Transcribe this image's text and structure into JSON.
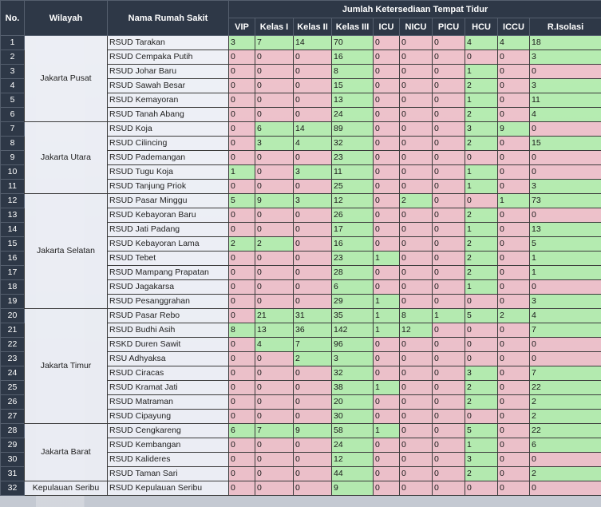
{
  "headers": {
    "no": "No.",
    "wilayah": "Wilayah",
    "rumah_sakit": "Nama Rumah Sakit",
    "group": "Jumlah Ketersediaan Tempat Tidur",
    "columns": [
      "VIP",
      "Kelas I",
      "Kelas II",
      "Kelas III",
      "ICU",
      "NICU",
      "PICU",
      "HCU",
      "ICCU",
      "R.Isolasi"
    ]
  },
  "regions": [
    {
      "name": "Jakarta Pusat",
      "rows": 6
    },
    {
      "name": "Jakarta Utara",
      "rows": 5
    },
    {
      "name": "Jakarta Selatan",
      "rows": 8
    },
    {
      "name": "Jakarta Timur",
      "rows": 8
    },
    {
      "name": "Jakarta Barat",
      "rows": 4
    },
    {
      "name": "Kepulauan Seribu",
      "rows": 1
    }
  ],
  "rows": [
    {
      "no": "1",
      "rs": "RSUD Tarakan",
      "v": [
        "3",
        "7",
        "14",
        "70",
        "0",
        "0",
        "0",
        "4",
        "4",
        "18"
      ]
    },
    {
      "no": "2",
      "rs": "RSUD Cempaka Putih",
      "v": [
        "0",
        "0",
        "0",
        "16",
        "0",
        "0",
        "0",
        "0",
        "0",
        "3"
      ]
    },
    {
      "no": "3",
      "rs": "RSUD Johar Baru",
      "v": [
        "0",
        "0",
        "0",
        "8",
        "0",
        "0",
        "0",
        "1",
        "0",
        "0"
      ]
    },
    {
      "no": "4",
      "rs": "RSUD Sawah Besar",
      "v": [
        "0",
        "0",
        "0",
        "15",
        "0",
        "0",
        "0",
        "2",
        "0",
        "3"
      ]
    },
    {
      "no": "5",
      "rs": "RSUD Kemayoran",
      "v": [
        "0",
        "0",
        "0",
        "13",
        "0",
        "0",
        "0",
        "1",
        "0",
        "11"
      ]
    },
    {
      "no": "6",
      "rs": "RSUD Tanah Abang",
      "v": [
        "0",
        "0",
        "0",
        "24",
        "0",
        "0",
        "0",
        "2",
        "0",
        "4"
      ]
    },
    {
      "no": "7",
      "rs": "RSUD Koja",
      "v": [
        "0",
        "6",
        "14",
        "89",
        "0",
        "0",
        "0",
        "3",
        "9",
        "0"
      ]
    },
    {
      "no": "8",
      "rs": "RSUD Cilincing",
      "v": [
        "0",
        "3",
        "4",
        "32",
        "0",
        "0",
        "0",
        "2",
        "0",
        "15"
      ]
    },
    {
      "no": "9",
      "rs": "RSUD Pademangan",
      "v": [
        "0",
        "0",
        "0",
        "23",
        "0",
        "0",
        "0",
        "0",
        "0",
        "0"
      ]
    },
    {
      "no": "10",
      "rs": "RSUD Tugu Koja",
      "v": [
        "1",
        "0",
        "3",
        "11",
        "0",
        "0",
        "0",
        "1",
        "0",
        "0"
      ]
    },
    {
      "no": "11",
      "rs": "RSUD Tanjung Priok",
      "v": [
        "0",
        "0",
        "0",
        "25",
        "0",
        "0",
        "0",
        "1",
        "0",
        "3"
      ]
    },
    {
      "no": "12",
      "rs": "RSUD Pasar Minggu",
      "v": [
        "5",
        "9",
        "3",
        "12",
        "0",
        "2",
        "0",
        "0",
        "1",
        "73"
      ]
    },
    {
      "no": "13",
      "rs": "RSUD Kebayoran Baru",
      "v": [
        "0",
        "0",
        "0",
        "26",
        "0",
        "0",
        "0",
        "2",
        "0",
        "0"
      ]
    },
    {
      "no": "14",
      "rs": "RSUD Jati Padang",
      "v": [
        "0",
        "0",
        "0",
        "17",
        "0",
        "0",
        "0",
        "1",
        "0",
        "13"
      ]
    },
    {
      "no": "15",
      "rs": "RSUD Kebayoran Lama",
      "v": [
        "2",
        "2",
        "0",
        "16",
        "0",
        "0",
        "0",
        "2",
        "0",
        "5"
      ]
    },
    {
      "no": "16",
      "rs": "RSUD Tebet",
      "v": [
        "0",
        "0",
        "0",
        "23",
        "1",
        "0",
        "0",
        "2",
        "0",
        "1"
      ]
    },
    {
      "no": "17",
      "rs": "RSUD Mampang Prapatan",
      "v": [
        "0",
        "0",
        "0",
        "28",
        "0",
        "0",
        "0",
        "2",
        "0",
        "1"
      ]
    },
    {
      "no": "18",
      "rs": "RSUD Jagakarsa",
      "v": [
        "0",
        "0",
        "0",
        "6",
        "0",
        "0",
        "0",
        "1",
        "0",
        "0"
      ]
    },
    {
      "no": "19",
      "rs": "RSUD Pesanggrahan",
      "v": [
        "0",
        "0",
        "0",
        "29",
        "1",
        "0",
        "0",
        "0",
        "0",
        "3"
      ]
    },
    {
      "no": "20",
      "rs": "RSUD Pasar Rebo",
      "v": [
        "0",
        "21",
        "31",
        "35",
        "1",
        "8",
        "1",
        "5",
        "2",
        "4"
      ]
    },
    {
      "no": "21",
      "rs": "RSUD Budhi Asih",
      "v": [
        "8",
        "13",
        "36",
        "142",
        "1",
        "12",
        "0",
        "0",
        "0",
        "7"
      ]
    },
    {
      "no": "22",
      "rs": "RSKD Duren Sawit",
      "v": [
        "0",
        "4",
        "7",
        "96",
        "0",
        "0",
        "0",
        "0",
        "0",
        "0"
      ]
    },
    {
      "no": "23",
      "rs": "RSU Adhyaksa",
      "v": [
        "0",
        "0",
        "2",
        "3",
        "0",
        "0",
        "0",
        "0",
        "0",
        "0"
      ]
    },
    {
      "no": "24",
      "rs": "RSUD Ciracas",
      "v": [
        "0",
        "0",
        "0",
        "32",
        "0",
        "0",
        "0",
        "3",
        "0",
        "7"
      ]
    },
    {
      "no": "25",
      "rs": "RSUD Kramat Jati",
      "v": [
        "0",
        "0",
        "0",
        "38",
        "1",
        "0",
        "0",
        "2",
        "0",
        "22"
      ]
    },
    {
      "no": "26",
      "rs": "RSUD Matraman",
      "v": [
        "0",
        "0",
        "0",
        "20",
        "0",
        "0",
        "0",
        "2",
        "0",
        "2"
      ]
    },
    {
      "no": "27",
      "rs": "RSUD Cipayung",
      "v": [
        "0",
        "0",
        "0",
        "30",
        "0",
        "0",
        "0",
        "0",
        "0",
        "2"
      ]
    },
    {
      "no": "28",
      "rs": "RSUD Cengkareng",
      "v": [
        "6",
        "7",
        "9",
        "58",
        "1",
        "0",
        "0",
        "5",
        "0",
        "22"
      ]
    },
    {
      "no": "29",
      "rs": "RSUD Kembangan",
      "v": [
        "0",
        "0",
        "0",
        "24",
        "0",
        "0",
        "0",
        "1",
        "0",
        "6"
      ]
    },
    {
      "no": "30",
      "rs": "RSUD Kalideres",
      "v": [
        "0",
        "0",
        "0",
        "12",
        "0",
        "0",
        "0",
        "3",
        "0",
        "0"
      ]
    },
    {
      "no": "31",
      "rs": "RSUD Taman Sari",
      "v": [
        "0",
        "0",
        "0",
        "44",
        "0",
        "0",
        "0",
        "2",
        "0",
        "2"
      ]
    },
    {
      "no": "32",
      "rs": "RSUD Kepulauan Seribu",
      "v": [
        "0",
        "0",
        "0",
        "9",
        "0",
        "0",
        "0",
        "0",
        "0",
        "0"
      ]
    }
  ],
  "colors": {
    "available": "#b2ecac",
    "empty": "#eebec8",
    "header": "#2e3847"
  }
}
